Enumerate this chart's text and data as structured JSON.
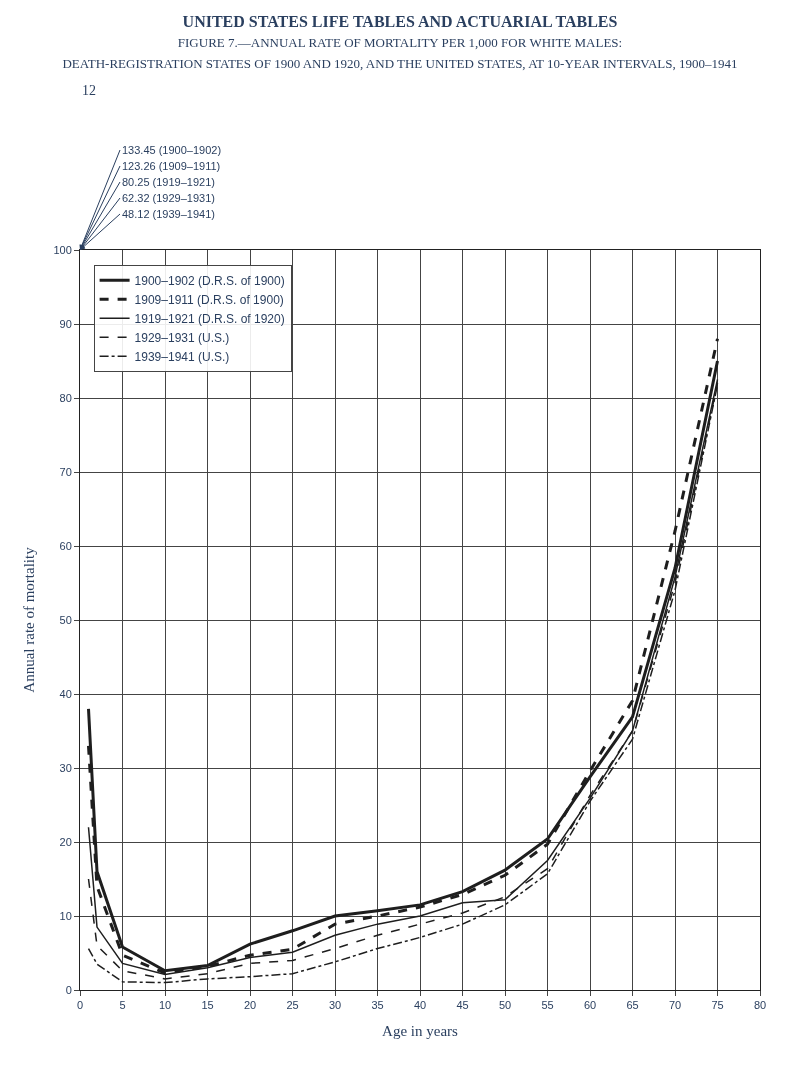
{
  "chart_data": {
    "type": "line",
    "title": "UNITED STATES LIFE TABLES AND ACTUARIAL TABLES",
    "subtitle": "FIGURE 7.—ANNUAL RATE OF MORTALITY PER 1,000 FOR WHITE MALES: DEATH-REGISTRATION STATES OF 1900 AND 1920, AND THE UNITED STATES, AT 10-YEAR INTERVALS, 1900–1941",
    "xlabel": "Age in years",
    "ylabel": "Annual rate of mortality",
    "x": [
      1,
      2,
      5,
      10,
      15,
      20,
      25,
      30,
      35,
      40,
      45,
      50,
      55,
      60,
      65,
      70,
      75
    ],
    "series": [
      {
        "name": "1900–1902 (D.R.S. of 1900)",
        "color": "#1e1e1e",
        "line_style": "solid",
        "values": [
          38,
          16,
          5.8,
          2.6,
          3.3,
          6.2,
          8.0,
          10.0,
          10.7,
          11.5,
          13.3,
          16.2,
          20.4,
          28.8,
          36.9,
          57,
          85
        ]
      },
      {
        "name": "1909–1911 (D.R.S. of 1900)",
        "color": "#1e1e1e",
        "line_style": "dashed",
        "values": [
          33,
          14,
          4.7,
          2.3,
          3.2,
          4.7,
          5.5,
          8.9,
          10.0,
          11.2,
          12.9,
          15.5,
          19.7,
          29.6,
          39.1,
          62,
          88
        ]
      },
      {
        "name": "1919–1921 (D.R.S. of 1920)",
        "color": "#1e1e1e",
        "line_style": "solid",
        "values": [
          22,
          8.5,
          3.6,
          2.1,
          3.0,
          4.4,
          5.1,
          7.4,
          8.9,
          10.0,
          11.8,
          12.2,
          17.5,
          25.9,
          35.0,
          55.8,
          82.5
        ]
      },
      {
        "name": "1929–1931 (U.S.)",
        "color": "#1e1e1e",
        "line_style": "dashed",
        "values": [
          15,
          6,
          2.6,
          1.5,
          2.2,
          3.6,
          4.0,
          5.6,
          7.4,
          8.9,
          10.4,
          12.6,
          16.4,
          26.3,
          35.0,
          55,
          82
        ]
      },
      {
        "name": "1939–1941 (U.S.)",
        "color": "#1e1e1e",
        "line_style": "dashdot",
        "values": [
          5.6,
          3.5,
          1.1,
          1.0,
          1.5,
          1.8,
          2.2,
          3.8,
          5.6,
          7.1,
          8.9,
          11.5,
          15.7,
          25.5,
          33.9,
          54,
          81.8
        ]
      }
    ],
    "annotations": [
      "133.45 (1900–1902)",
      "123.26 (1909–1911)",
      "80.25 (1919–1921)",
      "62.32 (1929–1931)",
      "48.12 (1939–1941)",
      "12"
    ],
    "xlim": [
      0,
      80
    ],
    "ylim": [
      0,
      100
    ],
    "xticks": [
      0,
      5,
      10,
      15,
      20,
      25,
      30,
      35,
      40,
      45,
      50,
      55,
      60,
      65,
      70,
      75,
      80
    ],
    "yticks": [
      0,
      10,
      20,
      30,
      40,
      50,
      60,
      70,
      80,
      90,
      100
    ],
    "grid": true,
    "legend": "top left",
    "marker": "none"
  }
}
